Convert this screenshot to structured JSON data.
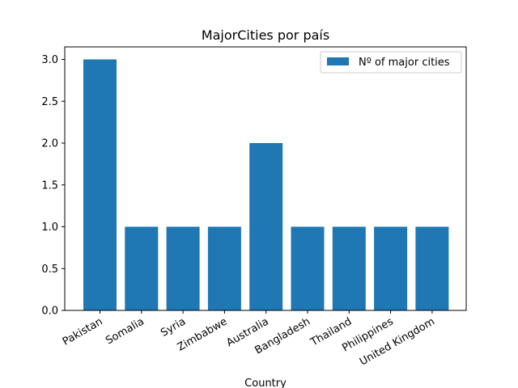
{
  "chart_data": {
    "type": "bar",
    "title": "MajorCities por país",
    "xlabel": "Country",
    "ylabel": "",
    "categories": [
      "Pakistan",
      "Somalia",
      "Syria",
      "Zimbabwe",
      "Australia",
      "Bangladesh",
      "Thailand",
      "Philippines",
      "United Kingdom"
    ],
    "series": [
      {
        "name": "Nº of major cities",
        "values": [
          3,
          1,
          1,
          1,
          2,
          1,
          1,
          1,
          1
        ],
        "color": "#1f77b4"
      }
    ],
    "ylim": [
      0,
      3.15
    ],
    "yticks": [
      "0.0",
      "0.5",
      "1.0",
      "1.5",
      "2.0",
      "2.5",
      "3.0"
    ],
    "grid": false,
    "legend_position": "top-right"
  }
}
